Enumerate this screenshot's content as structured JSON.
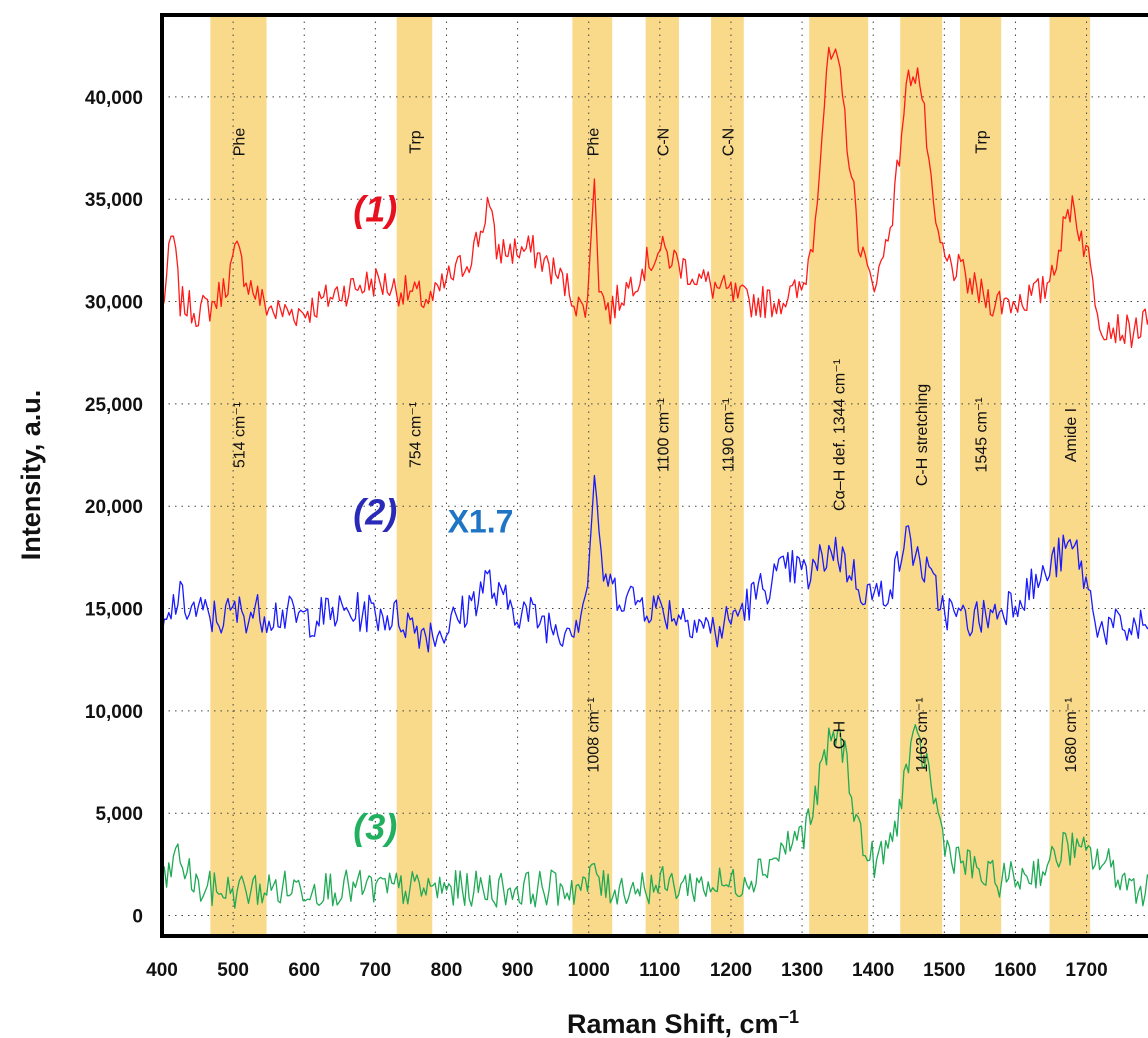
{
  "chart_data": {
    "type": "line",
    "xlabel": "Raman Shift, cm",
    "xlabel_sup": "−1",
    "ylabel": "Intensity, a.u.",
    "xlim": [
      400,
      1790
    ],
    "ylim": [
      -1000,
      44000
    ],
    "grid": true,
    "x_ticks": [
      400,
      500,
      600,
      700,
      800,
      900,
      1000,
      1100,
      1200,
      1300,
      1400,
      1500,
      1600,
      1700
    ],
    "y_ticks": [
      {
        "value": 0,
        "label": "0"
      },
      {
        "value": 5000,
        "label": "5,000"
      },
      {
        "value": 10000,
        "label": "10,000"
      },
      {
        "value": 15000,
        "label": "15,000"
      },
      {
        "value": 20000,
        "label": "20,000"
      },
      {
        "value": 25000,
        "label": "25,000"
      },
      {
        "value": 30000,
        "label": "30,000"
      },
      {
        "value": 35000,
        "label": "35,000"
      },
      {
        "value": 40000,
        "label": "40,000"
      }
    ],
    "bands": [
      {
        "x0": 468,
        "x1": 547,
        "top_label": "Phe",
        "mid_label": "514 cm⁻¹"
      },
      {
        "x0": 730,
        "x1": 780,
        "top_label": "Trp",
        "mid_label": "754 cm⁻¹"
      },
      {
        "x0": 977,
        "x1": 1033,
        "top_label": "Phe",
        "mid_label": "",
        "low_label": "1008 cm⁻¹"
      },
      {
        "x0": 1080,
        "x1": 1127,
        "top_label": "C-N",
        "mid_label": "1100 cm⁻¹"
      },
      {
        "x0": 1172,
        "x1": 1218,
        "top_label": "C-N",
        "mid_label": "1190 cm⁻¹"
      },
      {
        "x0": 1310,
        "x1": 1393,
        "top_label": "",
        "mid_label": "Cα–H def. 1344 cm⁻¹",
        "low_label": "C-H"
      },
      {
        "x0": 1438,
        "x1": 1497,
        "top_label": "",
        "mid_label": "C-H stretching",
        "low_label": "1463 cm⁻¹"
      },
      {
        "x0": 1522,
        "x1": 1580,
        "top_label": "Trp",
        "mid_label": "1545 cm⁻¹"
      },
      {
        "x0": 1648,
        "x1": 1705,
        "top_label": "",
        "mid_label": "Amide I",
        "low_label": "1680 cm⁻¹"
      }
    ],
    "band_color": "#f9d98a",
    "series": [
      {
        "name": "(1)",
        "color": "#ff1a1a",
        "baseline": 30000,
        "noise": 900,
        "x": [
          400,
          415,
          425,
          450,
          470,
          490,
          505,
          520,
          540,
          560,
          600,
          650,
          700,
          740,
          780,
          800,
          830,
          850,
          858,
          870,
          890,
          920,
          950,
          975,
          990,
          1000,
          1008,
          1015,
          1030,
          1050,
          1080,
          1100,
          1130,
          1160,
          1190,
          1220,
          1260,
          1300,
          1315,
          1325,
          1335,
          1345,
          1355,
          1365,
          1380,
          1395,
          1410,
          1430,
          1445,
          1455,
          1465,
          1475,
          1485,
          1500,
          1520,
          1545,
          1570,
          1600,
          1640,
          1660,
          1680,
          1690,
          1700,
          1720,
          1760,
          1790
        ],
        "y": [
          29500,
          33500,
          30000,
          29500,
          29800,
          30800,
          32500,
          31000,
          30000,
          29500,
          29500,
          30500,
          31000,
          30500,
          30000,
          31000,
          32000,
          33500,
          35000,
          32500,
          32500,
          32500,
          31500,
          30500,
          29500,
          30500,
          36500,
          30500,
          29500,
          30500,
          31800,
          32500,
          31800,
          31000,
          30500,
          30000,
          30000,
          30500,
          33000,
          37000,
          41500,
          42000,
          40500,
          37500,
          33000,
          31000,
          31500,
          35000,
          40000,
          41500,
          41000,
          38000,
          34000,
          32000,
          31500,
          30500,
          30000,
          30000,
          30500,
          32500,
          35000,
          33500,
          32500,
          29000,
          28500,
          29000
        ]
      },
      {
        "name": "(2)",
        "color": "#1a1aff",
        "baseline": 15000,
        "noise": 1100,
        "x": [
          400,
          420,
          450,
          480,
          500,
          530,
          560,
          600,
          650,
          700,
          740,
          760,
          780,
          800,
          830,
          858,
          870,
          900,
          930,
          960,
          985,
          1000,
          1008,
          1015,
          1030,
          1060,
          1100,
          1150,
          1180,
          1200,
          1230,
          1260,
          1290,
          1310,
          1330,
          1345,
          1365,
          1385,
          1405,
          1430,
          1445,
          1455,
          1470,
          1485,
          1500,
          1520,
          1545,
          1570,
          1600,
          1640,
          1660,
          1680,
          1690,
          1700,
          1720,
          1760,
          1790
        ],
        "y": [
          13500,
          15500,
          14800,
          14500,
          14800,
          14800,
          14800,
          14500,
          14800,
          14800,
          14500,
          14000,
          13800,
          14000,
          15000,
          16500,
          15500,
          15000,
          14500,
          14000,
          14500,
          16500,
          22000,
          17500,
          16000,
          15500,
          15000,
          14500,
          13800,
          14500,
          15500,
          16500,
          17000,
          16500,
          17500,
          18000,
          17000,
          16000,
          15500,
          16500,
          18500,
          18000,
          17000,
          16000,
          15000,
          14500,
          14500,
          14800,
          15500,
          16500,
          17500,
          18000,
          17500,
          16000,
          14000,
          14000,
          14200
        ]
      },
      {
        "name": "(3)",
        "color": "#1faa55",
        "baseline": 1000,
        "noise": 1000,
        "x": [
          400,
          420,
          450,
          500,
          550,
          600,
          700,
          800,
          900,
          1000,
          1008,
          1020,
          1100,
          1200,
          1230,
          1260,
          1280,
          1300,
          1315,
          1330,
          1345,
          1360,
          1375,
          1390,
          1410,
          1430,
          1445,
          1460,
          1475,
          1490,
          1505,
          1530,
          1560,
          1600,
          1650,
          1670,
          1690,
          1700,
          1730,
          1760,
          1790
        ],
        "y": [
          1200,
          3000,
          1300,
          1200,
          1300,
          1400,
          1300,
          1300,
          1300,
          1400,
          2500,
          1300,
          1500,
          1500,
          2000,
          2800,
          3500,
          4000,
          5000,
          7500,
          9000,
          8000,
          5000,
          2800,
          2700,
          4000,
          7000,
          8500,
          7500,
          5000,
          3200,
          2500,
          1800,
          1800,
          2500,
          3500,
          3000,
          3000,
          2500,
          1500,
          1300
        ]
      }
    ],
    "series_labels": [
      {
        "text": "(1)",
        "color": "#e8101e",
        "x": 735,
        "y": 34500
      },
      {
        "text": "(2)",
        "color": "#2a2ab8",
        "x": 735,
        "y": 19700
      },
      {
        "text": "(3)",
        "color": "#22b060",
        "x": 735,
        "y": 4300
      }
    ],
    "annotations": [
      {
        "text": "X1.7",
        "color": "#1f75c4",
        "x": 890,
        "y": 19300
      }
    ]
  }
}
